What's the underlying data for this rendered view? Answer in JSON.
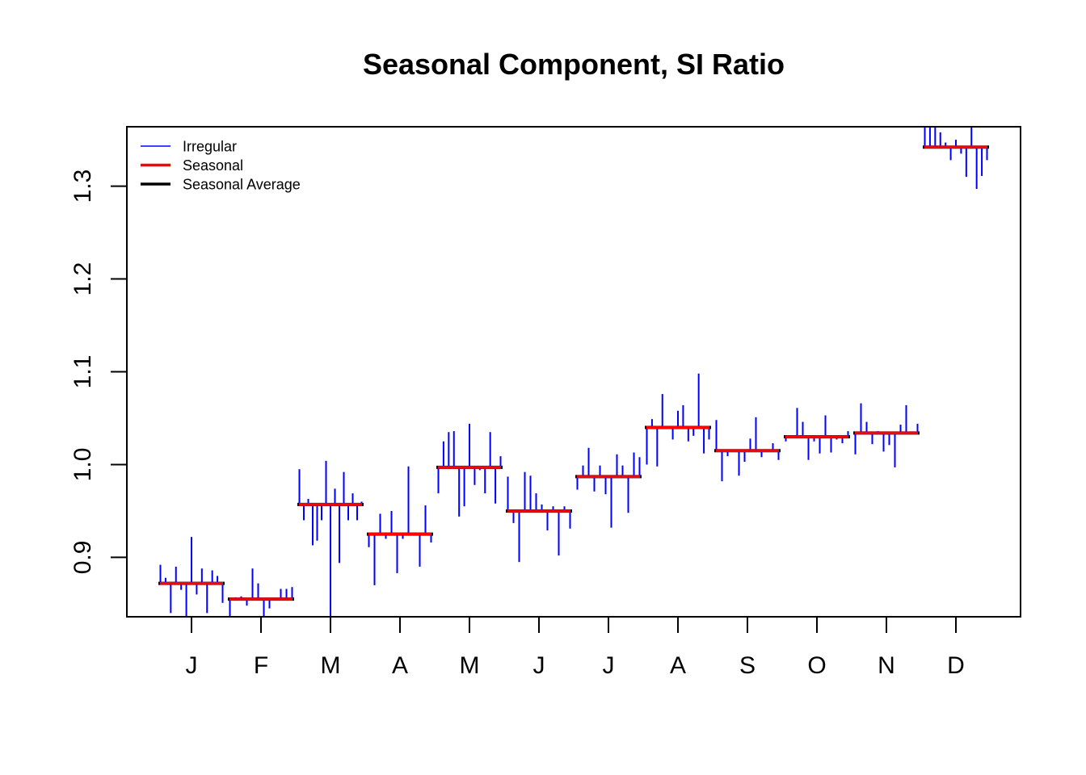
{
  "chart_data": {
    "type": "line",
    "title": "Seasonal Component, SI Ratio",
    "xlabel": "",
    "ylabel": "",
    "ylim": [
      0.836,
      1.364
    ],
    "y_ticks": [
      0.9,
      1.0,
      1.1,
      1.2,
      1.3
    ],
    "y_tick_labels": [
      "0.9",
      "1.0",
      "1.1",
      "1.2",
      "1.3"
    ],
    "categories": [
      "J",
      "F",
      "M",
      "A",
      "M",
      "J",
      "J",
      "A",
      "S",
      "O",
      "N",
      "D"
    ],
    "grid": false,
    "legend_position": "top-left",
    "legend": [
      {
        "label": "Irregular",
        "color": "#0000ff",
        "style": "thin"
      },
      {
        "label": "Seasonal",
        "color": "#ff0000",
        "style": "thick"
      },
      {
        "label": "Seasonal Average",
        "color": "#000000",
        "style": "thick"
      }
    ],
    "series": [
      {
        "name": "Seasonal Average",
        "color": "#000000",
        "values": [
          0.872,
          0.855,
          0.957,
          0.925,
          0.997,
          0.95,
          0.987,
          1.04,
          1.015,
          1.03,
          1.034,
          1.342
        ]
      },
      {
        "name": "Seasonal",
        "color": "#ff0000",
        "values": [
          0.872,
          0.855,
          0.957,
          0.925,
          0.997,
          0.95,
          0.987,
          1.04,
          1.015,
          1.03,
          1.034,
          1.342
        ]
      },
      {
        "name": "Irregular",
        "color": "#0000ff",
        "values": [
          [
            0.892,
            0.878,
            0.84,
            0.89,
            0.865,
            0.836,
            0.922,
            0.86,
            0.888,
            0.84,
            0.886,
            0.88,
            0.851
          ],
          [
            0.836,
            0.857,
            0.858,
            0.848,
            0.888,
            0.872,
            0.836,
            0.845,
            0.855,
            0.866,
            0.866,
            0.868
          ],
          [
            0.995,
            0.94,
            0.963,
            0.913,
            0.918,
            0.94,
            1.004,
            0.836,
            0.974,
            0.894,
            0.992,
            0.94,
            0.969,
            0.94,
            0.96
          ],
          [
            0.911,
            0.87,
            0.947,
            0.92,
            0.95,
            0.883,
            0.92,
            0.998,
            0.925,
            0.89,
            0.956,
            0.916
          ],
          [
            0.969,
            1.025,
            1.035,
            1.036,
            0.944,
            0.955,
            1.044,
            0.978,
            0.994,
            0.969,
            1.035,
            0.958,
            1.009
          ],
          [
            0.987,
            0.937,
            0.895,
            0.992,
            0.988,
            0.969,
            0.957,
            0.929,
            0.955,
            0.902,
            0.955,
            0.931
          ],
          [
            0.973,
            0.999,
            1.018,
            0.971,
            0.999,
            0.968,
            0.932,
            1.011,
            0.999,
            0.948,
            1.013,
            1.008
          ],
          [
            1.0,
            1.049,
            0.998,
            1.076,
            1.04,
            1.027,
            1.058,
            1.064,
            1.025,
            1.031,
            1.098,
            1.012,
            1.027
          ],
          [
            1.048,
            0.982,
            1.009,
            1.015,
            0.988,
            1.003,
            1.028,
            1.051,
            1.008,
            1.015,
            1.023,
            1.005
          ],
          [
            1.025,
            1.03,
            1.061,
            1.046,
            1.005,
            1.025,
            1.012,
            1.053,
            1.013,
            1.027,
            1.023,
            1.036
          ],
          [
            1.011,
            1.066,
            1.046,
            1.022,
            1.036,
            1.014,
            1.021,
            0.997,
            1.043,
            1.064,
            1.035,
            1.044
          ],
          [
            1.364,
            1.364,
            1.364,
            1.358,
            1.347,
            1.328,
            1.35,
            1.335,
            1.31,
            1.364,
            1.297,
            1.311,
            1.328
          ]
        ]
      }
    ]
  }
}
